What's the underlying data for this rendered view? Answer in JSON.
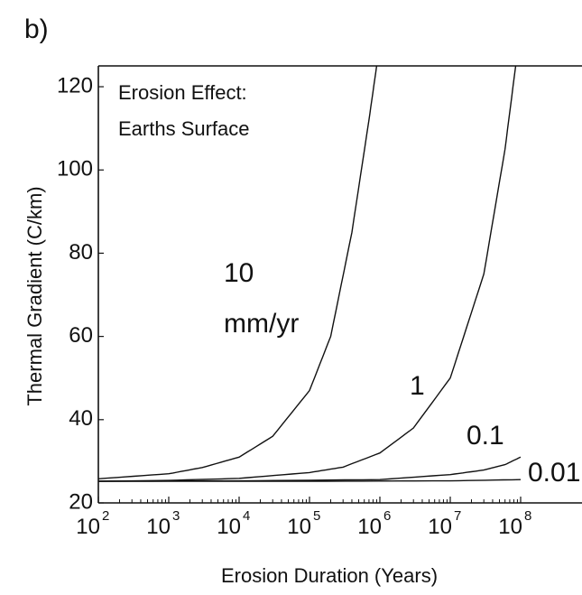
{
  "panel_label": "b)",
  "chart_data": {
    "type": "line",
    "title": "",
    "annotation": [
      "Erosion Effect:",
      "Earths Surface"
    ],
    "xlabel": "Erosion Duration (Years)",
    "ylabel": "Thermal Gradient (C/km)",
    "xscale": "log",
    "xlim": [
      100,
      100000000
    ],
    "ylim": [
      20,
      125
    ],
    "x_ticks": [
      {
        "base": "10",
        "exp": "2",
        "value": 100
      },
      {
        "base": "10",
        "exp": "3",
        "value": 1000
      },
      {
        "base": "10",
        "exp": "4",
        "value": 10000
      },
      {
        "base": "10",
        "exp": "5",
        "value": 100000
      },
      {
        "base": "10",
        "exp": "6",
        "value": 1000000
      },
      {
        "base": "10",
        "exp": "7",
        "value": 10000000
      },
      {
        "base": "10",
        "exp": "8",
        "value": 100000000
      }
    ],
    "y_ticks": [
      "20",
      "40",
      "60",
      "80",
      "100",
      "120"
    ],
    "series": [
      {
        "name": "10 mm/yr",
        "label_lines": [
          "10",
          "mm/yr"
        ],
        "x": [
          100,
          1000,
          3000,
          10000,
          30000,
          100000,
          200000,
          400000,
          700000,
          900000
        ],
        "y": [
          25.8,
          27,
          28.5,
          31,
          36,
          47,
          60,
          85,
          112,
          125
        ]
      },
      {
        "name": "1",
        "label_lines": [
          "1"
        ],
        "x": [
          100,
          1000,
          10000,
          100000,
          300000,
          1000000,
          3000000,
          10000000,
          30000000,
          60000000,
          85000000
        ],
        "y": [
          25.2,
          25.4,
          25.9,
          27.3,
          28.6,
          32,
          38,
          50,
          75,
          105,
          125
        ]
      },
      {
        "name": "0.1",
        "label_lines": [
          "0.1"
        ],
        "x": [
          100,
          10000,
          1000000,
          10000000,
          30000000,
          60000000,
          100000000
        ],
        "y": [
          25.2,
          25.3,
          25.6,
          26.8,
          27.9,
          29.2,
          31
        ]
      },
      {
        "name": "0.01",
        "label_lines": [
          "0.01"
        ],
        "x": [
          100,
          100000,
          10000000,
          100000000
        ],
        "y": [
          25.2,
          25.2,
          25.3,
          25.6
        ]
      }
    ]
  }
}
